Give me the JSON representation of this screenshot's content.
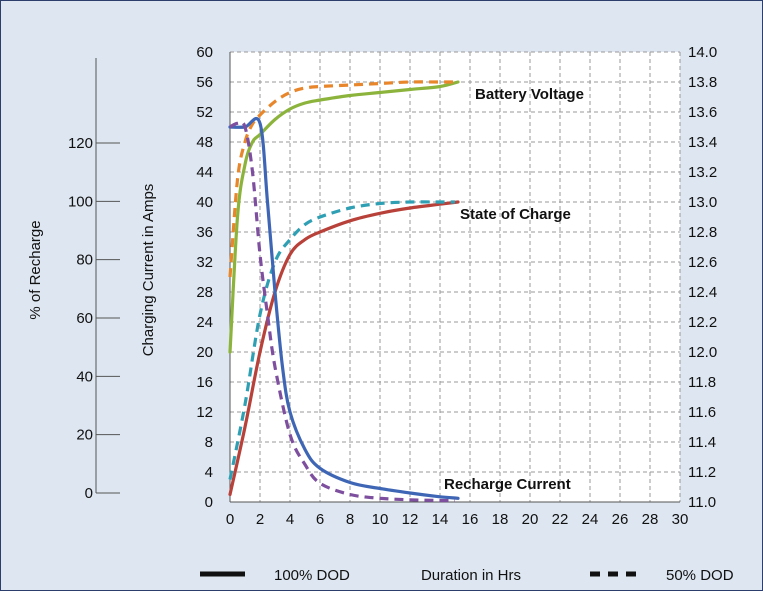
{
  "chart_data": {
    "type": "line",
    "xlabel": "Duration in Hrs",
    "ylabel_left_outer": "% of Recharge",
    "ylabel_left_inner": "Charging Current in Amps",
    "x_ticks": [
      0,
      2,
      4,
      6,
      8,
      10,
      12,
      14,
      16,
      18,
      20,
      22,
      24,
      26,
      28,
      30
    ],
    "xlim": [
      0,
      30
    ],
    "y_amps_ticks": [
      0,
      4,
      8,
      12,
      16,
      20,
      24,
      28,
      32,
      36,
      40,
      44,
      48,
      52,
      56,
      60
    ],
    "ylim_amps": [
      0,
      60
    ],
    "y_percent_ticks": [
      0,
      20,
      40,
      60,
      80,
      100,
      120
    ],
    "y_volts_ticks": [
      "11.0",
      "11.2",
      "11.4",
      "11.6",
      "11.8",
      "12.0",
      "12.2",
      "12.4",
      "12.6",
      "12.8",
      "13.0",
      "13.2",
      "13.4",
      "13.6",
      "13.8",
      "14.0"
    ],
    "ylim_volts": [
      11.0,
      14.0
    ],
    "grid": true,
    "annotations": [
      "Battery Voltage",
      "State of Charge",
      "Recharge Current"
    ],
    "legend": [
      {
        "label": "100% DOD",
        "style": "solid"
      },
      {
        "label": "50% DOD",
        "style": "dashed"
      }
    ],
    "series": [
      {
        "group": "Battery Voltage",
        "dod": "100% DOD",
        "color": "#8cb43c",
        "style": "solid",
        "x": [
          0,
          0.5,
          1,
          1.5,
          2,
          3,
          4,
          5,
          6,
          8,
          10,
          12,
          14,
          15.2
        ],
        "y": [
          12.0,
          12.9,
          13.25,
          13.4,
          13.45,
          13.55,
          13.62,
          13.66,
          13.68,
          13.71,
          13.73,
          13.75,
          13.77,
          13.8
        ]
      },
      {
        "group": "Battery Voltage",
        "dod": "50% DOD",
        "color": "#e8862c",
        "style": "dashed",
        "x": [
          0,
          0.5,
          1,
          1.5,
          2,
          3,
          4,
          5,
          6,
          8,
          10,
          12,
          14,
          15
        ],
        "y": [
          12.5,
          13.15,
          13.4,
          13.52,
          13.58,
          13.67,
          13.73,
          13.76,
          13.77,
          13.78,
          13.79,
          13.8,
          13.8,
          13.8
        ]
      },
      {
        "group": "State of Charge",
        "dod": "100% DOD",
        "color": "#b8413a",
        "style": "solid",
        "x": [
          0,
          1,
          2,
          3,
          4,
          5,
          6,
          8,
          10,
          12,
          14,
          15.2
        ],
        "y": [
          1,
          10,
          20,
          28,
          33,
          35,
          36,
          37.5,
          38.5,
          39.2,
          39.7,
          40
        ]
      },
      {
        "group": "State of Charge",
        "dod": "50% DOD",
        "color": "#2fa0b4",
        "style": "dashed",
        "x": [
          0,
          1,
          2,
          3,
          4,
          5,
          6,
          8,
          10,
          12,
          14,
          15
        ],
        "y": [
          3,
          13,
          25,
          32,
          35,
          37,
          38,
          39.2,
          39.8,
          40,
          40,
          40
        ]
      },
      {
        "group": "Recharge Current",
        "dod": "100% DOD",
        "color": "#3e66b5",
        "style": "solid",
        "x": [
          0,
          1,
          2,
          2.5,
          3,
          3.5,
          4,
          5,
          6,
          8,
          10,
          12,
          14,
          15.2
        ],
        "y": [
          50,
          50,
          50.5,
          40,
          28,
          18,
          12,
          7,
          4.5,
          2.6,
          1.8,
          1.2,
          0.7,
          0.5
        ]
      },
      {
        "group": "Recharge Current",
        "dod": "50% DOD",
        "color": "#7d4f9e",
        "style": "dashed",
        "x": [
          0,
          0.5,
          1,
          1.5,
          2,
          2.5,
          3,
          4,
          5,
          6,
          8,
          10,
          12,
          14,
          15
        ],
        "y": [
          50,
          50.5,
          50,
          44,
          33,
          25,
          18,
          9,
          5,
          2.5,
          1,
          0.5,
          0.3,
          0.2,
          0.2
        ]
      }
    ]
  }
}
